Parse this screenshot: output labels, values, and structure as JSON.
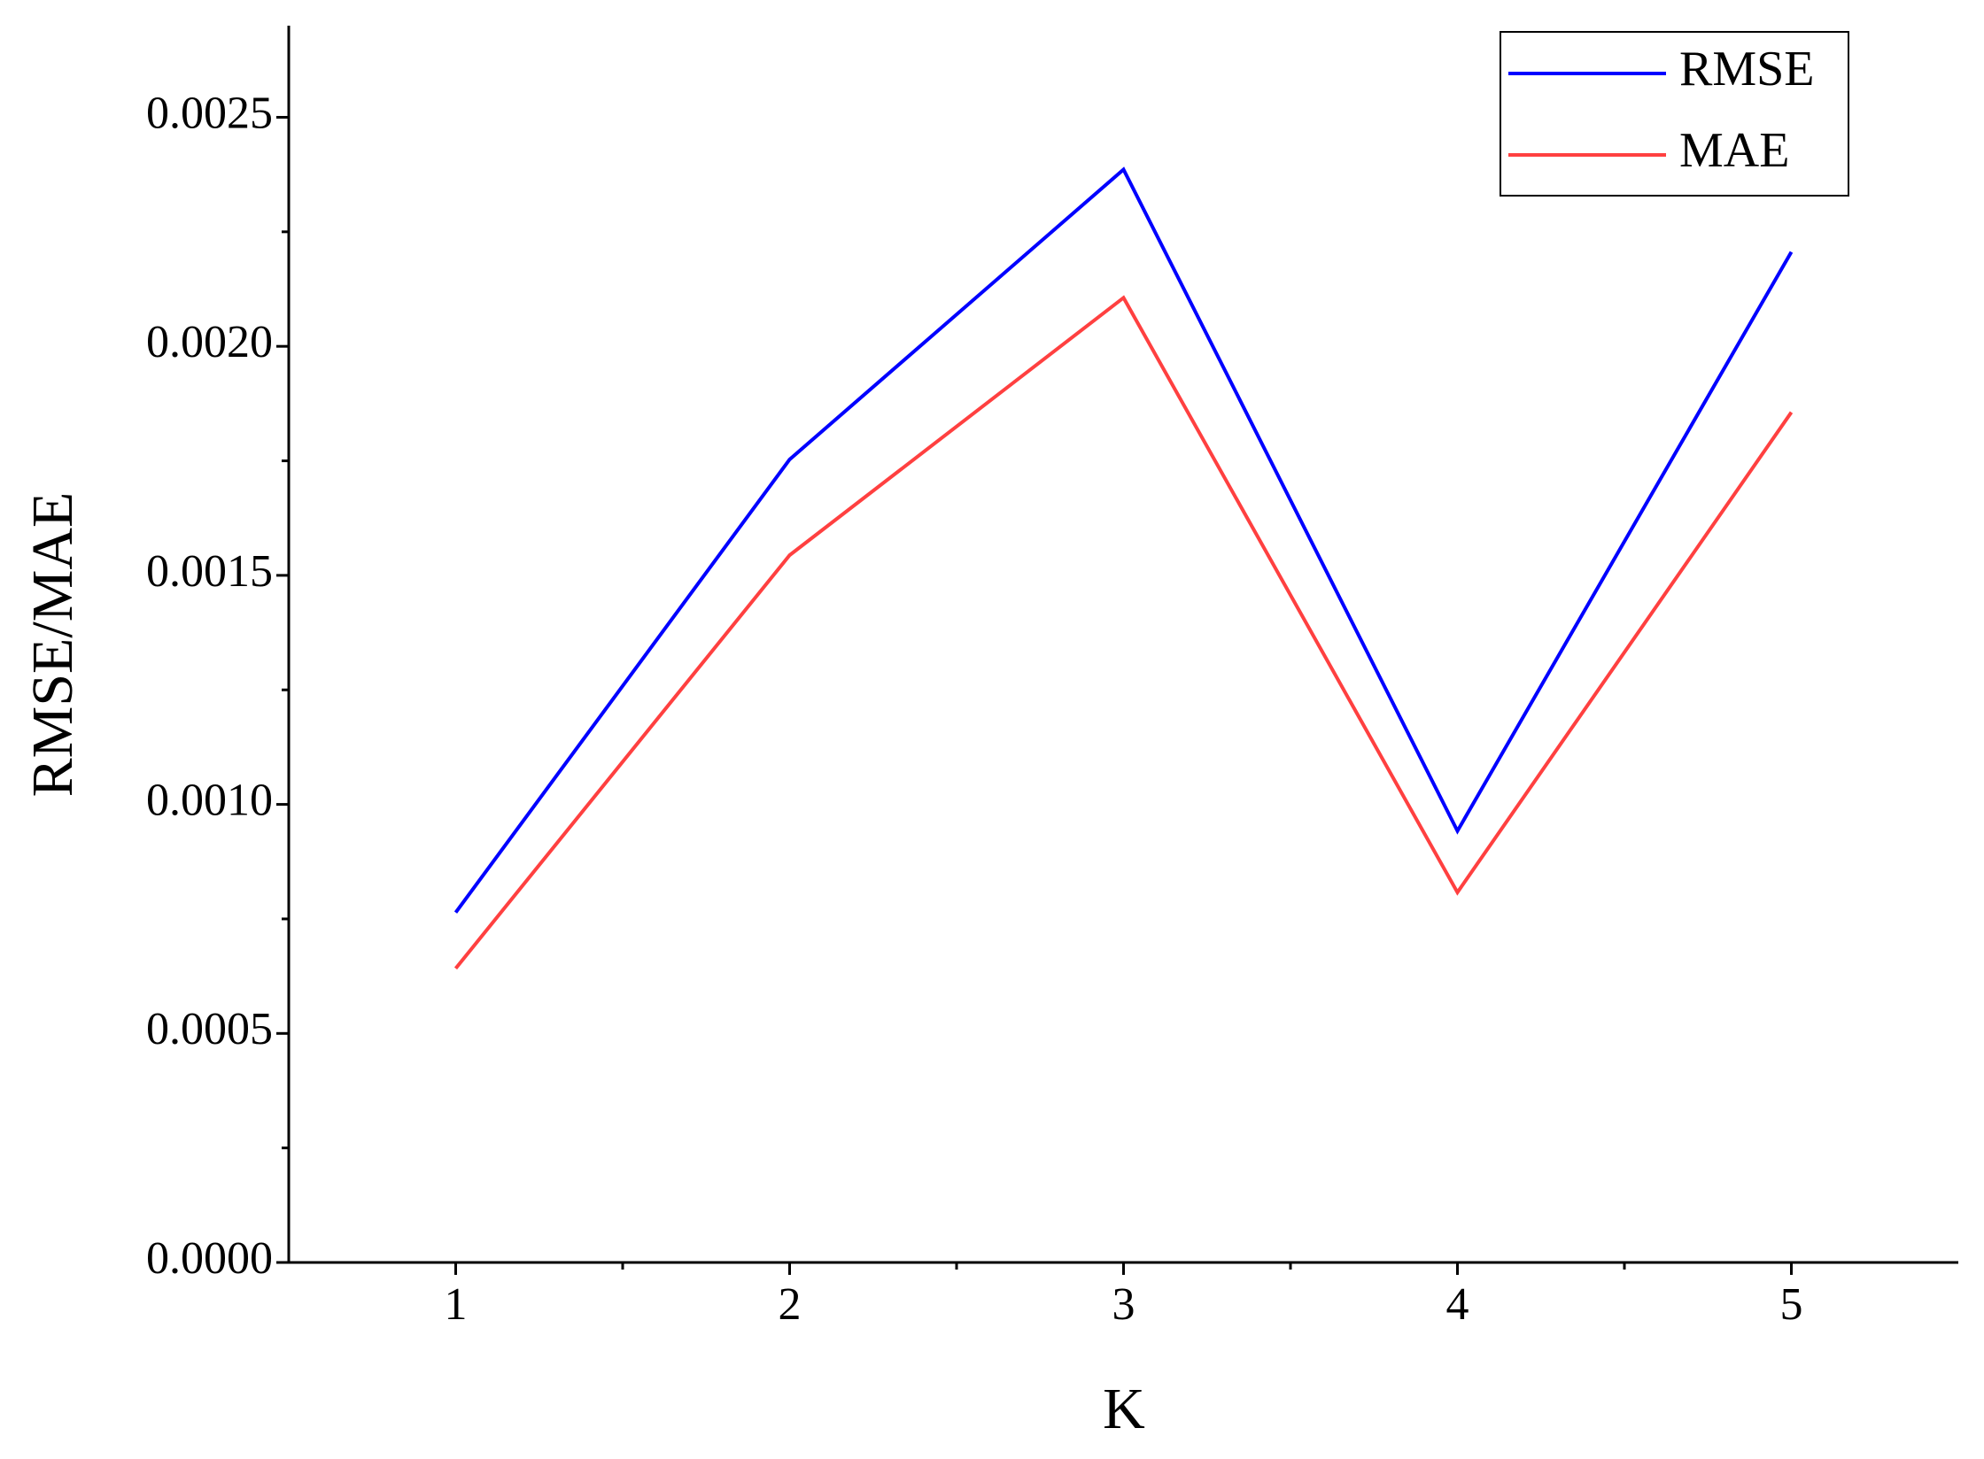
{
  "chart_data": {
    "type": "line",
    "x_label": "K",
    "y_label": "RMSE/MAE",
    "x": [
      1,
      2,
      3,
      4,
      5
    ],
    "series": [
      {
        "name": "RMSE",
        "color": "#0000ff",
        "values": [
          0.000764,
          0.001753,
          0.002386,
          0.000942,
          0.002206
        ]
      },
      {
        "name": "MAE",
        "color": "#ff4040",
        "values": [
          0.000642,
          0.001544,
          0.002106,
          0.000808,
          0.001856
        ]
      }
    ],
    "xlim": [
      0.5,
      5.5
    ],
    "xticks": [
      1,
      2,
      3,
      4,
      5
    ],
    "ylim": [
      0,
      0.0027
    ],
    "yticks": [
      {
        "value": 0,
        "label": "0.0000"
      },
      {
        "value": 0.0005,
        "label": "0.0005"
      },
      {
        "value": 0.001,
        "label": "0.0010"
      },
      {
        "value": 0.0015,
        "label": "0.0015"
      },
      {
        "value": 0.002,
        "label": "0.0020"
      },
      {
        "value": 0.0025,
        "label": "0.0025"
      }
    ],
    "grid": false,
    "legend": "upper right"
  }
}
